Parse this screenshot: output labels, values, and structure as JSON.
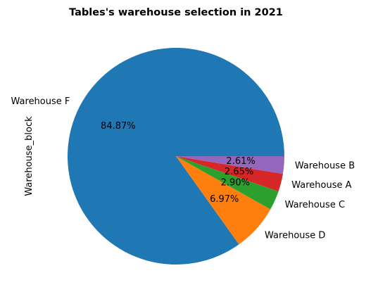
{
  "chart_data": {
    "type": "pie",
    "title": "Tables's warehouse selection in 2021",
    "ylabel": "Warehouse_block",
    "start_angle_deg": 0,
    "direction": "counterclockwise",
    "slices": [
      {
        "label": "Warehouse F",
        "value": 84.87,
        "pct_label": "84.87%",
        "color": "#1f77b4"
      },
      {
        "label": "Warehouse D",
        "value": 6.97,
        "pct_label": "6.97%",
        "color": "#ff7f0e"
      },
      {
        "label": "Warehouse C",
        "value": 2.9,
        "pct_label": "2.90%",
        "color": "#2ca02c"
      },
      {
        "label": "Warehouse A",
        "value": 2.65,
        "pct_label": "2.65%",
        "color": "#d62728"
      },
      {
        "label": "Warehouse B",
        "value": 2.61,
        "pct_label": "2.61%",
        "color": "#9467bd"
      }
    ]
  }
}
